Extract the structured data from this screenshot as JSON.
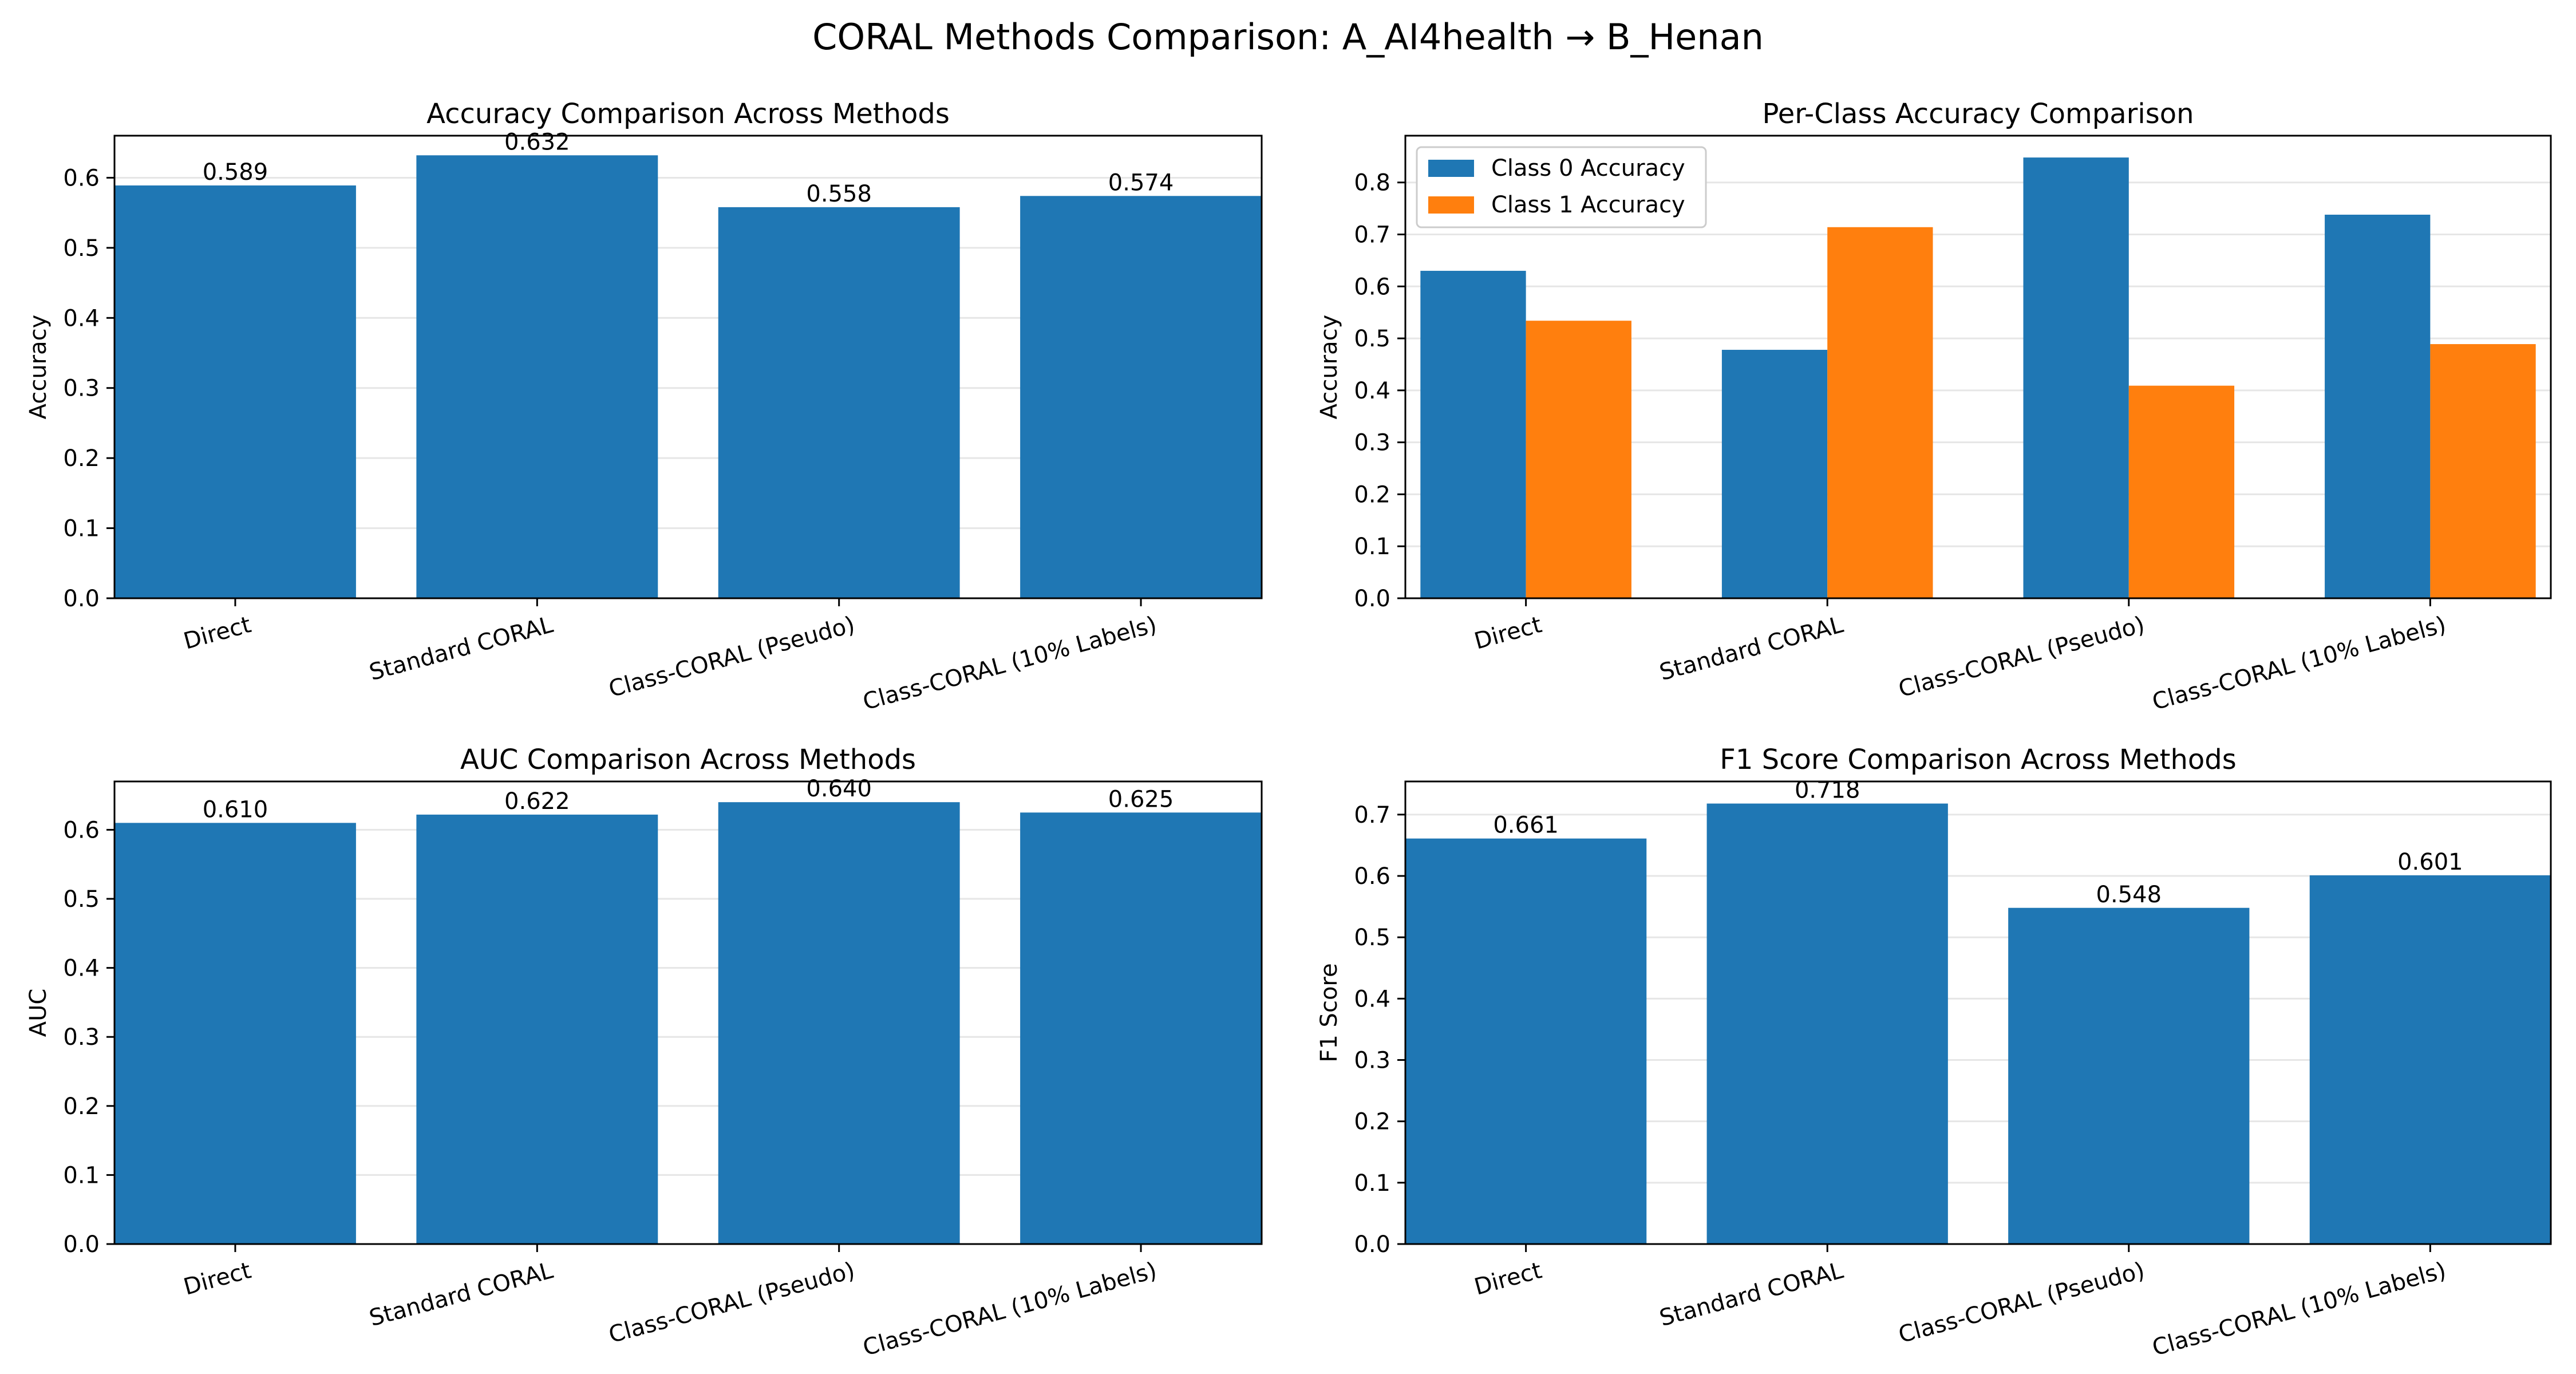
{
  "suptitle": "CORAL Methods Comparison: A_AI4health → B_Henan",
  "colors": {
    "bar": "#1f77b4",
    "class0": "#1f77b4",
    "class1": "#ff7f0e",
    "grid": "#e6e6e6",
    "axis": "#000000"
  },
  "chart_data": [
    {
      "type": "bar",
      "title": "Accuracy Comparison Across Methods",
      "xlabel": "",
      "ylabel": "Accuracy",
      "categories": [
        "Direct",
        "Standard CORAL",
        "Class-CORAL (Pseudo)",
        "Class-CORAL (10% Labels)"
      ],
      "values": [
        0.589,
        0.632,
        0.558,
        0.574
      ],
      "value_labels": [
        "0.589",
        "0.632",
        "0.558",
        "0.574"
      ],
      "ylim": [
        0,
        0.66
      ],
      "yticks": [
        0.0,
        0.1,
        0.2,
        0.3,
        0.4,
        0.5,
        0.6
      ],
      "ytick_labels": [
        "0.0",
        "0.1",
        "0.2",
        "0.3",
        "0.4",
        "0.5",
        "0.6"
      ],
      "grid": "y"
    },
    {
      "type": "bar",
      "title": "Per-Class Accuracy Comparison",
      "xlabel": "",
      "ylabel": "Accuracy",
      "categories": [
        "Direct",
        "Standard CORAL",
        "Class-CORAL (Pseudo)",
        "Class-CORAL (10% Labels)"
      ],
      "series": [
        {
          "name": "Class 0 Accuracy",
          "values": [
            0.63,
            0.478,
            0.848,
            0.738
          ]
        },
        {
          "name": "Class 1 Accuracy",
          "values": [
            0.534,
            0.714,
            0.409,
            0.489
          ]
        }
      ],
      "ylim": [
        0,
        0.89
      ],
      "yticks": [
        0.0,
        0.1,
        0.2,
        0.3,
        0.4,
        0.5,
        0.6,
        0.7,
        0.8
      ],
      "ytick_labels": [
        "0.0",
        "0.1",
        "0.2",
        "0.3",
        "0.4",
        "0.5",
        "0.6",
        "0.7",
        "0.8"
      ],
      "legend": "top-left",
      "grid": "y"
    },
    {
      "type": "bar",
      "title": "AUC Comparison Across Methods",
      "xlabel": "",
      "ylabel": "AUC",
      "categories": [
        "Direct",
        "Standard CORAL",
        "Class-CORAL (Pseudo)",
        "Class-CORAL (10% Labels)"
      ],
      "values": [
        0.61,
        0.622,
        0.64,
        0.625
      ],
      "value_labels": [
        "0.610",
        "0.622",
        "0.640",
        "0.625"
      ],
      "ylim": [
        0,
        0.67
      ],
      "yticks": [
        0.0,
        0.1,
        0.2,
        0.3,
        0.4,
        0.5,
        0.6
      ],
      "ytick_labels": [
        "0.0",
        "0.1",
        "0.2",
        "0.3",
        "0.4",
        "0.5",
        "0.6"
      ],
      "grid": "y"
    },
    {
      "type": "bar",
      "title": "F1 Score Comparison Across Methods",
      "xlabel": "",
      "ylabel": "F1 Score",
      "categories": [
        "Direct",
        "Standard CORAL",
        "Class-CORAL (Pseudo)",
        "Class-CORAL (10% Labels)"
      ],
      "values": [
        0.661,
        0.718,
        0.548,
        0.601
      ],
      "value_labels": [
        "0.661",
        "0.718",
        "0.548",
        "0.601"
      ],
      "ylim": [
        0,
        0.754
      ],
      "yticks": [
        0.0,
        0.1,
        0.2,
        0.3,
        0.4,
        0.5,
        0.6,
        0.7
      ],
      "ytick_labels": [
        "0.0",
        "0.1",
        "0.2",
        "0.3",
        "0.4",
        "0.5",
        "0.6",
        "0.7"
      ],
      "grid": "y"
    }
  ]
}
